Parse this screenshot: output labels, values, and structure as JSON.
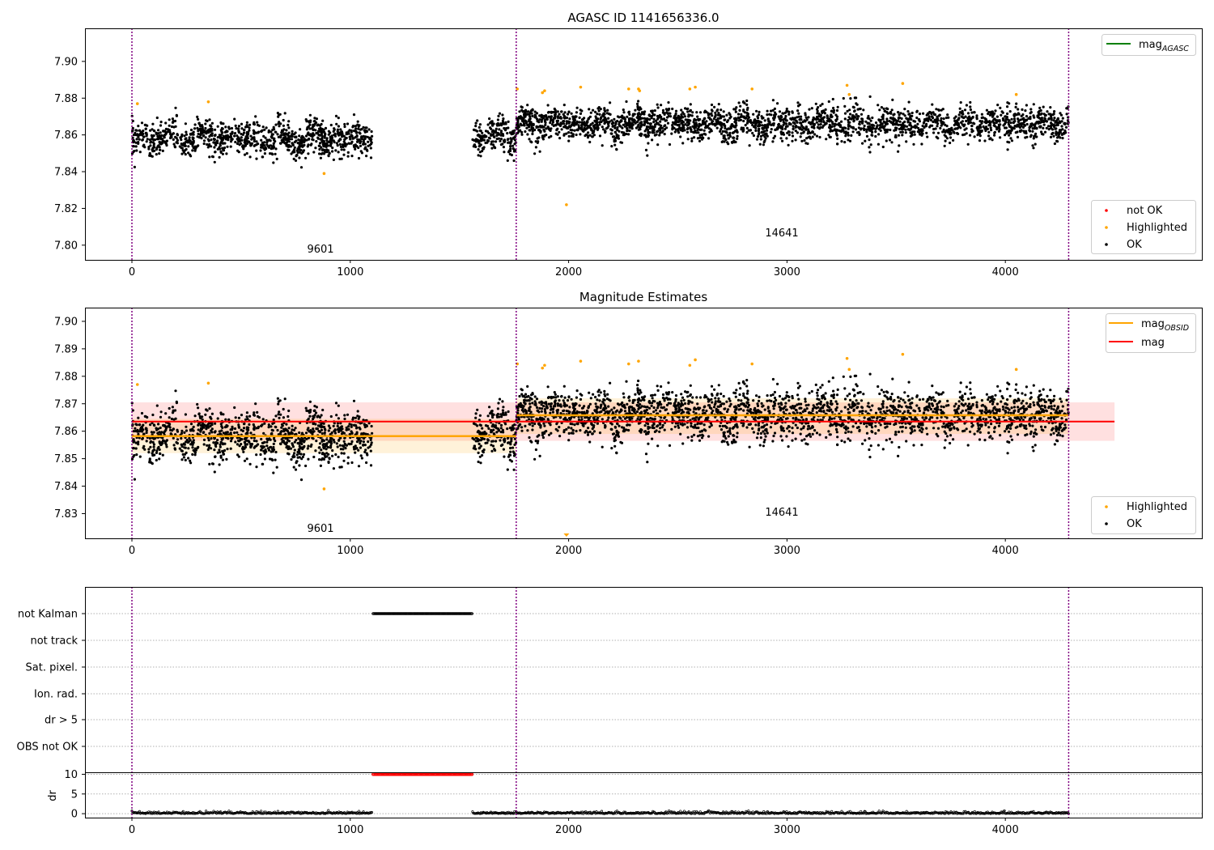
{
  "chart_data": [
    {
      "type": "scatter",
      "title": "AGASC ID 1141656336.0",
      "xlabel": "",
      "ylabel": "",
      "xlim": [
        -215,
        4900
      ],
      "ylim": [
        7.792,
        7.918
      ],
      "x_ticks": [
        0,
        1000,
        2000,
        3000,
        4000
      ],
      "y_ticks": [
        7.8,
        7.82,
        7.84,
        7.86,
        7.88,
        7.9
      ],
      "y_tick_labels": [
        "7.80",
        "7.82",
        "7.84",
        "7.86",
        "7.88",
        "7.90"
      ],
      "vlines": [
        0,
        1760,
        4290
      ],
      "annotations": [
        {
          "text": "9601",
          "x": 880,
          "y": 7.796
        },
        {
          "text": "14641",
          "x": 3020,
          "y": 7.805
        }
      ],
      "legend_top": {
        "position": "upper right",
        "entries": [
          {
            "label": "mag",
            "sub": "AGASC",
            "color": "#008000",
            "kind": "line"
          }
        ]
      },
      "legend_bottom": {
        "position": "lower right",
        "entries": [
          {
            "label": "not OK",
            "color": "#ff0000",
            "kind": "marker"
          },
          {
            "label": "Highlighted",
            "color": "#ffa500",
            "kind": "marker"
          },
          {
            "label": "OK",
            "color": "#000000",
            "kind": "marker"
          }
        ]
      },
      "segments": [
        {
          "x_start": 0,
          "x_end": 1100,
          "center": 7.858,
          "amplitude": 0.004,
          "scatter": 0.005
        },
        {
          "x_start": 1560,
          "x_end": 1760,
          "center": 7.859,
          "amplitude": 0.003,
          "scatter": 0.005
        },
        {
          "x_start": 1760,
          "x_end": 4290,
          "center": 7.866,
          "amplitude": 0.003,
          "scatter": 0.005
        }
      ],
      "highlighted_points": [
        {
          "x": 25,
          "y": 7.877
        },
        {
          "x": 350,
          "y": 7.878
        },
        {
          "x": 880,
          "y": 7.839
        },
        {
          "x": 1765,
          "y": 7.885
        },
        {
          "x": 1880,
          "y": 7.883
        },
        {
          "x": 1890,
          "y": 7.884
        },
        {
          "x": 1990,
          "y": 7.822
        },
        {
          "x": 2055,
          "y": 7.886
        },
        {
          "x": 2275,
          "y": 7.885
        },
        {
          "x": 2320,
          "y": 7.885
        },
        {
          "x": 2325,
          "y": 7.884
        },
        {
          "x": 2555,
          "y": 7.885
        },
        {
          "x": 2580,
          "y": 7.886
        },
        {
          "x": 2840,
          "y": 7.885
        },
        {
          "x": 3275,
          "y": 7.887
        },
        {
          "x": 3285,
          "y": 7.882
        },
        {
          "x": 3530,
          "y": 7.888
        },
        {
          "x": 4050,
          "y": 7.882
        }
      ]
    },
    {
      "type": "scatter",
      "title": "Magnitude Estimates",
      "xlabel": "",
      "ylabel": "",
      "xlim": [
        -215,
        4900
      ],
      "ylim": [
        7.821,
        7.905
      ],
      "x_ticks": [
        0,
        1000,
        2000,
        3000,
        4000
      ],
      "y_ticks": [
        7.83,
        7.84,
        7.85,
        7.86,
        7.87,
        7.88,
        7.89,
        7.9
      ],
      "y_tick_labels": [
        "7.83",
        "7.84",
        "7.85",
        "7.86",
        "7.87",
        "7.88",
        "7.89",
        "7.90"
      ],
      "vlines": [
        0,
        1760,
        4290
      ],
      "annotations": [
        {
          "text": "9601",
          "x": 880,
          "y": 7.825
        },
        {
          "text": "14641",
          "x": 3020,
          "y": 7.831
        }
      ],
      "mag": {
        "value": 7.8635,
        "band": [
          7.8565,
          7.8705
        ],
        "x_start": 0,
        "x_end": 4500,
        "color": "#ff0000"
      },
      "mag_obsid": [
        {
          "obsid": "9601",
          "x_start": 0,
          "x_end": 1760,
          "value": 7.8582,
          "band": [
            7.852,
            7.8645
          ]
        },
        {
          "obsid": "14641",
          "x_start": 1760,
          "x_end": 4290,
          "value": 7.8658,
          "band": [
            7.859,
            7.872
          ]
        }
      ],
      "legend_top": {
        "position": "upper right",
        "entries": [
          {
            "label": "mag",
            "sub": "OBSID",
            "color": "#ffa500",
            "kind": "line"
          },
          {
            "label": "mag",
            "sub": "",
            "color": "#ff0000",
            "kind": "line"
          }
        ]
      },
      "legend_bottom": {
        "position": "lower right",
        "entries": [
          {
            "label": "Highlighted",
            "color": "#ffa500",
            "kind": "marker"
          },
          {
            "label": "OK",
            "color": "#000000",
            "kind": "marker"
          }
        ]
      },
      "highlighted_points": [
        {
          "x": 25,
          "y": 7.877
        },
        {
          "x": 350,
          "y": 7.8775
        },
        {
          "x": 880,
          "y": 7.839
        },
        {
          "x": 1765,
          "y": 7.8845
        },
        {
          "x": 1880,
          "y": 7.883
        },
        {
          "x": 1890,
          "y": 7.884
        },
        {
          "x": 2055,
          "y": 7.8855
        },
        {
          "x": 2275,
          "y": 7.8845
        },
        {
          "x": 2320,
          "y": 7.8855
        },
        {
          "x": 2555,
          "y": 7.884
        },
        {
          "x": 2580,
          "y": 7.886
        },
        {
          "x": 2840,
          "y": 7.8845
        },
        {
          "x": 3275,
          "y": 7.8865
        },
        {
          "x": 3285,
          "y": 7.8825
        },
        {
          "x": 3530,
          "y": 7.888
        },
        {
          "x": 4050,
          "y": 7.8825
        }
      ],
      "offscale_points": [
        {
          "x": 1990,
          "y": 7.822
        }
      ]
    },
    {
      "type": "scatter",
      "title": "",
      "xlabel": "",
      "ylabel": "",
      "xlim": [
        -215,
        4900
      ],
      "x_ticks": [
        0,
        1000,
        2000,
        3000,
        4000
      ],
      "vlines": [
        0,
        1760,
        4290
      ],
      "flag_categories": [
        "not Kalman",
        "not track",
        "Sat. pixel.",
        "Ion. rad.",
        "dr > 5",
        "OBS not OK"
      ],
      "flagged": [
        {
          "category": "not Kalman",
          "x_start": 1105,
          "x_end": 1560
        }
      ]
    },
    {
      "type": "scatter",
      "title": "",
      "xlabel": "",
      "ylabel": "dr",
      "xlim": [
        -215,
        4900
      ],
      "ylim": [
        -1,
        10.3
      ],
      "y_ticks": [
        0,
        5,
        10
      ],
      "y_tick_labels": [
        "0",
        "5",
        "10"
      ],
      "x_ticks": [
        0,
        1000,
        2000,
        3000,
        4000
      ],
      "vlines": [
        0,
        1760,
        4290
      ],
      "clipped_points": {
        "value": 10,
        "x_start": 1105,
        "x_end": 1560,
        "color": "#ff0000"
      },
      "near_zero_segments": [
        {
          "x_start": 0,
          "x_end": 1100
        },
        {
          "x_start": 1560,
          "x_end": 4290
        }
      ]
    }
  ],
  "colors": {
    "ok": "#000000",
    "highlighted": "#ffa500",
    "not_ok": "#ff0000",
    "mag": "#ff0000",
    "mag_obsid": "#ffa500",
    "mag_agasc": "#008000",
    "obs_line": "#800080"
  }
}
